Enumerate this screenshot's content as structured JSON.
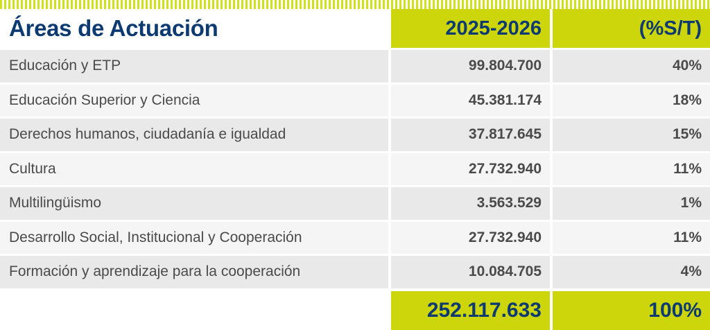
{
  "header": {
    "area_label": "Áreas de Actuación",
    "period_label": "2025-2026",
    "share_label": "(%S/T)"
  },
  "rows": [
    {
      "area": "Educación y ETP",
      "amount": "99.804.700",
      "share": "40%"
    },
    {
      "area": "Educación Superior y Ciencia",
      "amount": "45.381.174",
      "share": "18%"
    },
    {
      "area": "Derechos humanos, ciudadanía e igualdad",
      "amount": "37.817.645",
      "share": "15%"
    },
    {
      "area": "Cultura",
      "amount": "27.732.940",
      "share": "11%"
    },
    {
      "area": "Multilingüismo",
      "amount": "3.563.529",
      "share": "1%"
    },
    {
      "area": "Desarrollo Social, Institucional y Cooperación",
      "amount": "27.732.940",
      "share": "11%"
    },
    {
      "area": "Formación y aprendizaje para la cooperación",
      "amount": "10.084.705",
      "share": "4%"
    }
  ],
  "total": {
    "amount": "252.117.633",
    "share": "100%"
  },
  "colors": {
    "accent": "#ccd60b",
    "heading": "#0e3a72",
    "row_light": "#f5f5f5",
    "row_dark": "#e9e9e9"
  }
}
